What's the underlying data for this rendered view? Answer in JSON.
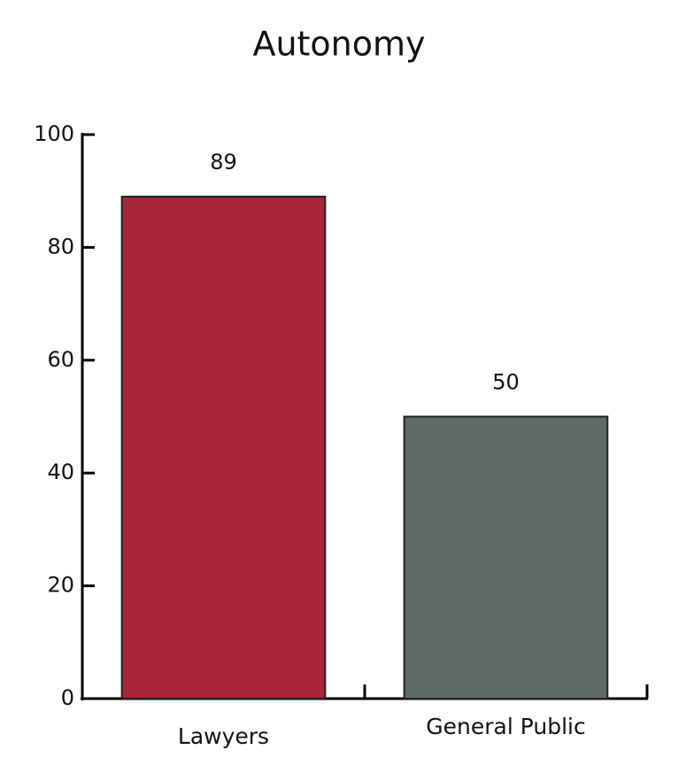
{
  "chart_data": {
    "type": "bar",
    "title": "Autonomy",
    "categories": [
      "Lawyers",
      "General Public"
    ],
    "values": [
      89,
      50
    ],
    "colors": [
      "#a8253a",
      "#5f6b68"
    ],
    "ylim": [
      0,
      100
    ],
    "yticks": [
      0,
      20,
      40,
      60,
      80,
      100
    ]
  }
}
